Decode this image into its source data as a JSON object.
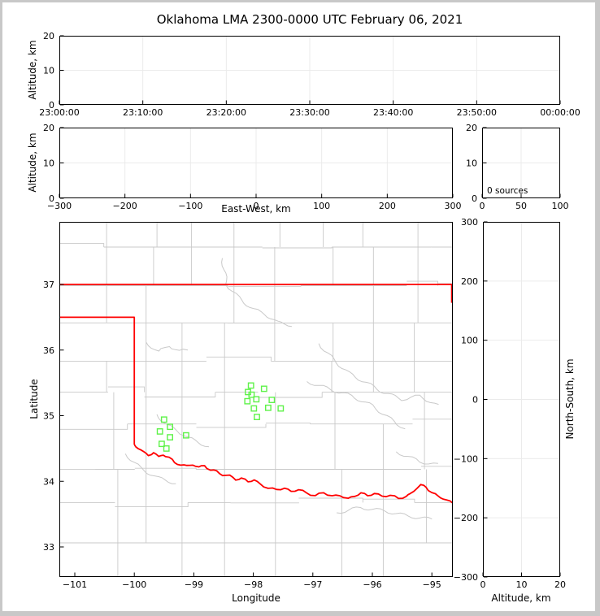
{
  "title": "Oklahoma LMA 2300-0000 UTC February 06, 2021",
  "labels": {
    "altitude_km": "Altitude, km",
    "east_west": "East-West, km",
    "latitude": "Latitude",
    "longitude": "Longitude",
    "north_south": "North-South, km"
  },
  "colors": {
    "state_border": "#ff0000",
    "county": "#c9c9c9",
    "station": "#5ff24a",
    "grid": "#ebebeb",
    "frame": "#000000",
    "figure_border": "#c8c8c8"
  },
  "chart_data": {
    "type": "scatter",
    "description": "XLMA-style lightning mapping array display; all source panels empty (0 sources); map shows LMA station locations and Oklahoma state border",
    "time_panel": {
      "xtick_values": [
        0,
        600,
        1200,
        1800,
        2400,
        3000,
        3600
      ],
      "xtick_labels": [
        "23:00:00",
        "23:10:00",
        "23:20:00",
        "23:30:00",
        "23:40:00",
        "23:50:00",
        "00:00:00"
      ],
      "xlim": [
        0,
        3600
      ],
      "ytick_values": [
        0,
        10,
        20
      ],
      "ytick_labels": [
        "0",
        "10",
        "20"
      ],
      "ylim": [
        0,
        20
      ],
      "points": []
    },
    "ew_panel": {
      "xtick_values": [
        -300,
        -200,
        -100,
        0,
        100,
        200,
        300
      ],
      "xtick_labels": [
        "−300",
        "−200",
        "−100",
        "0",
        "100",
        "200",
        "300"
      ],
      "xlim": [
        -300,
        300
      ],
      "ytick_values": [
        0,
        10,
        20
      ],
      "ytick_labels": [
        "0",
        "10",
        "20"
      ],
      "ylim": [
        0,
        20
      ],
      "points": []
    },
    "hist_panel": {
      "xtick_values": [
        0,
        50,
        100
      ],
      "xtick_labels": [
        "0",
        "50",
        "100"
      ],
      "xlim": [
        0,
        100
      ],
      "ytick_values": [
        0,
        10,
        20
      ],
      "ytick_labels": [
        "0",
        "10",
        "20"
      ],
      "ylim": [
        0,
        20
      ],
      "annotation": "0 sources",
      "points": []
    },
    "ns_panel": {
      "xtick_values": [
        0,
        10,
        20
      ],
      "xtick_labels": [
        "0",
        "10",
        "20"
      ],
      "xlim": [
        0,
        20
      ],
      "ytick_values": [
        300,
        200,
        100,
        0,
        -100,
        -200,
        -300
      ],
      "ytick_labels": [
        "300",
        "200",
        "100",
        "0",
        "−100",
        "−200",
        "−300"
      ],
      "ylim": [
        -300,
        300
      ],
      "points": []
    },
    "map_panel": {
      "xtick_values": [
        -101,
        -100,
        -99,
        -98,
        -97,
        -96,
        -95
      ],
      "xtick_labels": [
        "−101",
        "−100",
        "−99",
        "−98",
        "−97",
        "−96",
        "−95"
      ],
      "ytick_values": [
        33,
        34,
        35,
        36,
        37
      ],
      "ytick_labels": [
        "33",
        "34",
        "35",
        "36",
        "37"
      ],
      "lon_lim": [
        -101.26,
        -94.65
      ],
      "lat_lim": [
        32.54,
        37.94
      ],
      "stations_lon_lat": [
        [
          -98.04,
          35.46
        ],
        [
          -97.82,
          35.41
        ],
        [
          -98.09,
          35.36
        ],
        [
          -98.03,
          35.32
        ],
        [
          -97.95,
          35.25
        ],
        [
          -98.1,
          35.22
        ],
        [
          -97.69,
          35.24
        ],
        [
          -97.75,
          35.12
        ],
        [
          -97.99,
          35.11
        ],
        [
          -97.54,
          35.11
        ],
        [
          -97.94,
          34.98
        ],
        [
          -99.5,
          34.94
        ],
        [
          -99.4,
          34.83
        ],
        [
          -99.57,
          34.76
        ],
        [
          -99.4,
          34.67
        ],
        [
          -99.13,
          34.7
        ],
        [
          -99.54,
          34.57
        ],
        [
          -99.46,
          34.5
        ]
      ],
      "state_border": {
        "kansas": [
          [
            -101.26,
            37.0
          ],
          [
            -94.65,
            37.0
          ]
        ],
        "east": [
          [
            -94.65,
            37.0
          ],
          [
            -94.65,
            36.72
          ]
        ],
        "panhandle": [
          [
            -101.26,
            36.5
          ],
          [
            -100.0,
            36.5
          ],
          [
            -100.0,
            34.56
          ]
        ],
        "red_river": [
          [
            -100.0,
            34.56
          ],
          [
            -99.93,
            34.51
          ],
          [
            -99.85,
            34.44
          ],
          [
            -99.76,
            34.4
          ],
          [
            -99.68,
            34.44
          ],
          [
            -99.6,
            34.37
          ],
          [
            -99.52,
            34.41
          ],
          [
            -99.42,
            34.36
          ],
          [
            -99.32,
            34.29
          ],
          [
            -99.22,
            34.25
          ],
          [
            -99.12,
            34.23
          ],
          [
            -99.02,
            34.26
          ],
          [
            -98.92,
            34.21
          ],
          [
            -98.82,
            34.24
          ],
          [
            -98.72,
            34.17
          ],
          [
            -98.62,
            34.15
          ],
          [
            -98.51,
            34.1
          ],
          [
            -98.4,
            34.08
          ],
          [
            -98.29,
            34.03
          ],
          [
            -98.2,
            34.05
          ],
          [
            -98.09,
            33.99
          ],
          [
            -97.99,
            34.03
          ],
          [
            -97.89,
            33.95
          ],
          [
            -97.75,
            33.9
          ],
          [
            -97.61,
            33.87
          ],
          [
            -97.48,
            33.9
          ],
          [
            -97.37,
            33.84
          ],
          [
            -97.24,
            33.88
          ],
          [
            -97.11,
            33.82
          ],
          [
            -96.96,
            33.78
          ],
          [
            -96.82,
            33.83
          ],
          [
            -96.68,
            33.77
          ],
          [
            -96.55,
            33.79
          ],
          [
            -96.41,
            33.73
          ],
          [
            -96.3,
            33.78
          ],
          [
            -96.19,
            33.82
          ],
          [
            -96.08,
            33.78
          ],
          [
            -95.97,
            33.82
          ],
          [
            -95.84,
            33.77
          ],
          [
            -95.7,
            33.79
          ],
          [
            -95.56,
            33.74
          ],
          [
            -95.43,
            33.77
          ],
          [
            -95.36,
            33.8
          ],
          [
            -95.26,
            33.9
          ],
          [
            -95.18,
            33.94
          ],
          [
            -95.1,
            33.91
          ],
          [
            -95.0,
            33.83
          ],
          [
            -94.9,
            33.77
          ],
          [
            -94.8,
            33.74
          ],
          [
            -94.65,
            33.66
          ]
        ]
      },
      "rivers": [
        [
          [
            -98.52,
            37.4
          ],
          [
            -98.45,
            37.0
          ],
          [
            -98.25,
            36.8
          ],
          [
            -98.0,
            36.62
          ],
          [
            -97.8,
            36.55
          ],
          [
            -97.6,
            36.42
          ],
          [
            -97.35,
            36.38
          ]
        ],
        [
          [
            -99.8,
            36.12
          ],
          [
            -99.6,
            35.97
          ],
          [
            -99.42,
            36.07
          ],
          [
            -99.25,
            35.98
          ],
          [
            -99.1,
            36.0
          ]
        ],
        [
          [
            -99.62,
            35.02
          ],
          [
            -99.45,
            34.85
          ],
          [
            -99.28,
            34.78
          ],
          [
            -99.1,
            34.66
          ],
          [
            -98.92,
            34.6
          ],
          [
            -98.75,
            34.52
          ]
        ],
        [
          [
            -96.9,
            36.1
          ],
          [
            -96.65,
            35.85
          ],
          [
            -96.4,
            35.65
          ],
          [
            -96.1,
            35.5
          ],
          [
            -95.8,
            35.35
          ],
          [
            -95.5,
            35.25
          ],
          [
            -95.2,
            35.3
          ],
          [
            -94.9,
            35.15
          ]
        ],
        [
          [
            -97.1,
            35.52
          ],
          [
            -96.7,
            35.4
          ],
          [
            -96.35,
            35.3
          ],
          [
            -96.0,
            35.15
          ],
          [
            -95.7,
            34.95
          ],
          [
            -95.45,
            34.8
          ]
        ],
        [
          [
            -100.15,
            34.42
          ],
          [
            -99.9,
            34.2
          ],
          [
            -99.6,
            34.05
          ],
          [
            -99.3,
            33.97
          ]
        ],
        [
          [
            -96.6,
            33.52
          ],
          [
            -96.2,
            33.6
          ],
          [
            -95.8,
            33.55
          ],
          [
            -95.4,
            33.47
          ],
          [
            -95.0,
            33.42
          ]
        ],
        [
          [
            -95.6,
            34.45
          ],
          [
            -95.2,
            34.3
          ],
          [
            -94.9,
            34.25
          ]
        ]
      ]
    }
  }
}
